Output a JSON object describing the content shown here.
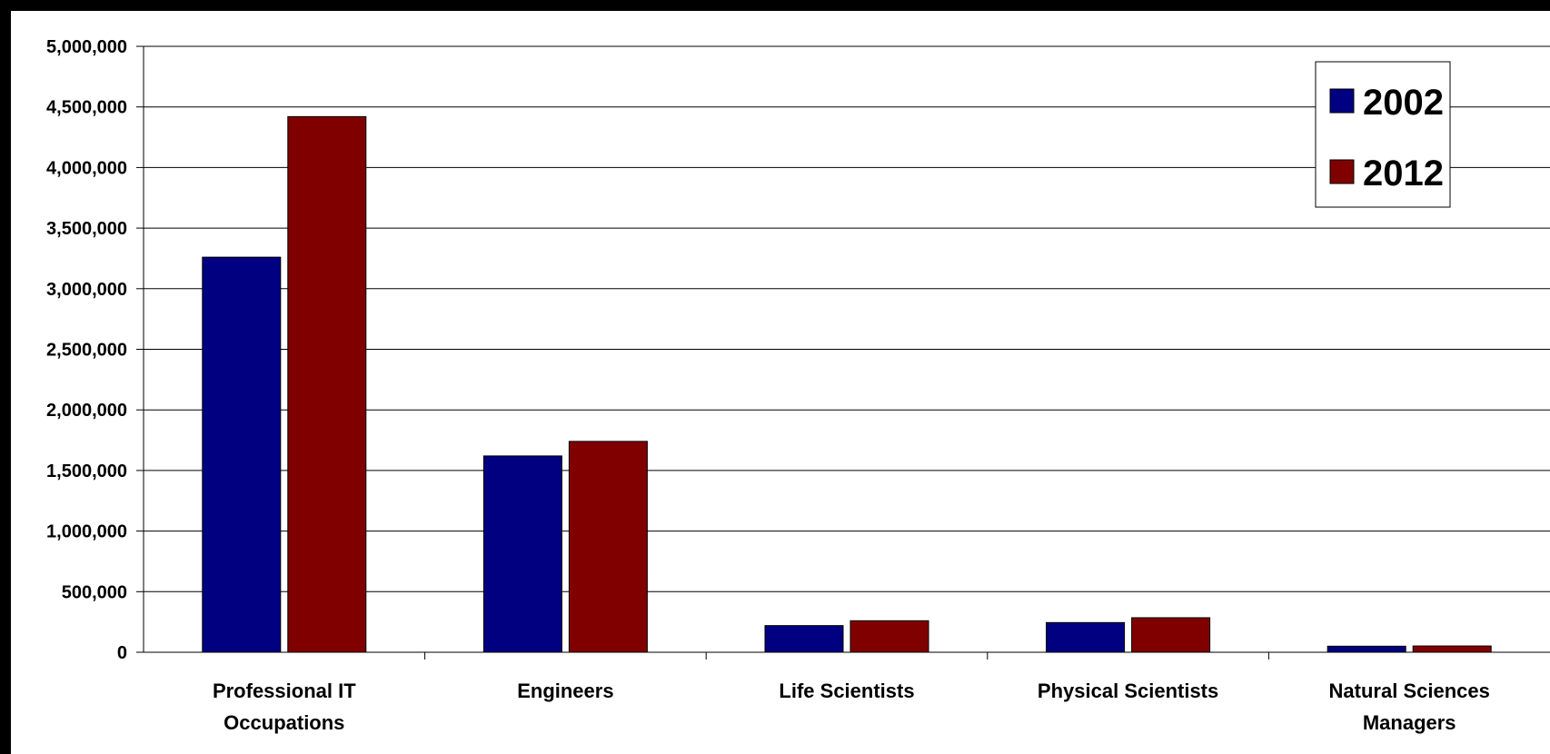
{
  "chart_data": {
    "type": "bar",
    "categories": [
      [
        "Professional IT",
        "Occupations"
      ],
      [
        "Engineers"
      ],
      [
        "Life Scientists"
      ],
      [
        "Physical Scientists"
      ],
      [
        "Natural Sciences",
        "Managers"
      ]
    ],
    "series": [
      {
        "name": "2002",
        "color": "#000080",
        "values": [
          3260000,
          1620000,
          220000,
          245000,
          50000
        ]
      },
      {
        "name": "2012",
        "color": "#800000",
        "values": [
          4420000,
          1740000,
          260000,
          285000,
          52000
        ]
      }
    ],
    "ylim": [
      0,
      5000000
    ],
    "yticks": [
      "0",
      "500,000",
      "1,000,000",
      "1,500,000",
      "2,000,000",
      "2,500,000",
      "3,000,000",
      "3,500,000",
      "4,000,000",
      "4,500,000",
      "5,000,000"
    ],
    "ytick_values": [
      0,
      500000,
      1000000,
      1500000,
      2000000,
      2500000,
      3000000,
      3500000,
      4000000,
      4500000,
      5000000
    ],
    "grid": true,
    "legend_position": "top-right",
    "xlabel": "",
    "ylabel": "",
    "title": ""
  }
}
